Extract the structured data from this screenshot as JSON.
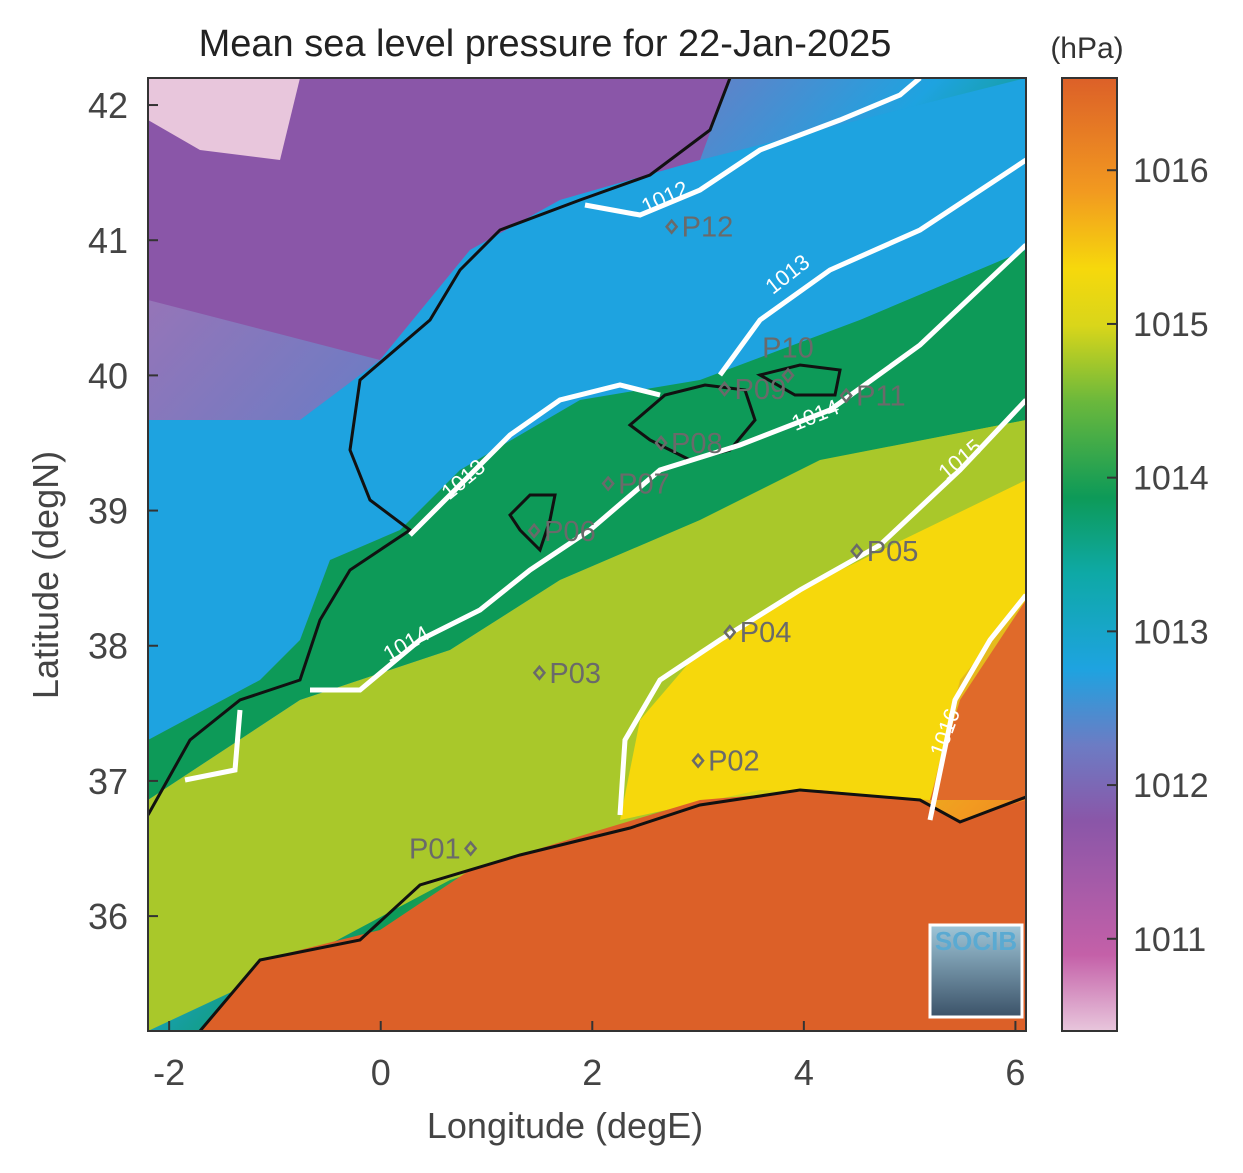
{
  "title": "Mean sea level pressure for 22-Jan-2025",
  "colorbar": {
    "unit": "(hPa)",
    "ticks": [
      "1011",
      "1012",
      "1013",
      "1014",
      "1015",
      "1016"
    ],
    "range": [
      1010.4,
      1016.6
    ],
    "colors": [
      "#e8c6dc",
      "#c460a8",
      "#8a56a8",
      "#6c7cc4",
      "#1ea3e0",
      "#0ea9a6",
      "#0d9a58",
      "#6ab83c",
      "#d9d61a",
      "#f6d80c",
      "#f29a20",
      "#e06a2a",
      "#dc6028"
    ]
  },
  "axes": {
    "xlabel": "Longitude (degE)",
    "ylabel": "Latitude (degN)",
    "xticks": [
      "-2",
      "0",
      "2",
      "4",
      "6"
    ],
    "yticks": [
      "36",
      "37",
      "38",
      "39",
      "40",
      "41",
      "42"
    ],
    "xlim": [
      -2.2,
      6.1
    ],
    "ylim": [
      35.15,
      42.2
    ]
  },
  "points": [
    {
      "id": "P01",
      "lon": 0.85,
      "lat": 36.5
    },
    {
      "id": "P02",
      "lon": 3.0,
      "lat": 37.15
    },
    {
      "id": "P03",
      "lon": 1.5,
      "lat": 37.8
    },
    {
      "id": "P04",
      "lon": 3.3,
      "lat": 38.1
    },
    {
      "id": "P05",
      "lon": 4.5,
      "lat": 38.7
    },
    {
      "id": "P06",
      "lon": 1.45,
      "lat": 38.85
    },
    {
      "id": "P07",
      "lon": 2.15,
      "lat": 39.2
    },
    {
      "id": "P08",
      "lon": 2.65,
      "lat": 39.5
    },
    {
      "id": "P09",
      "lon": 3.25,
      "lat": 39.9
    },
    {
      "id": "P10",
      "lon": 3.85,
      "lat": 40.0
    },
    {
      "id": "P11",
      "lon": 4.4,
      "lat": 39.85
    },
    {
      "id": "P12",
      "lon": 2.75,
      "lat": 41.1
    }
  ],
  "isobars": [
    "1012",
    "1013",
    "1013",
    "1014",
    "1014",
    "1015",
    "1016"
  ],
  "logo": "SOCIB"
}
